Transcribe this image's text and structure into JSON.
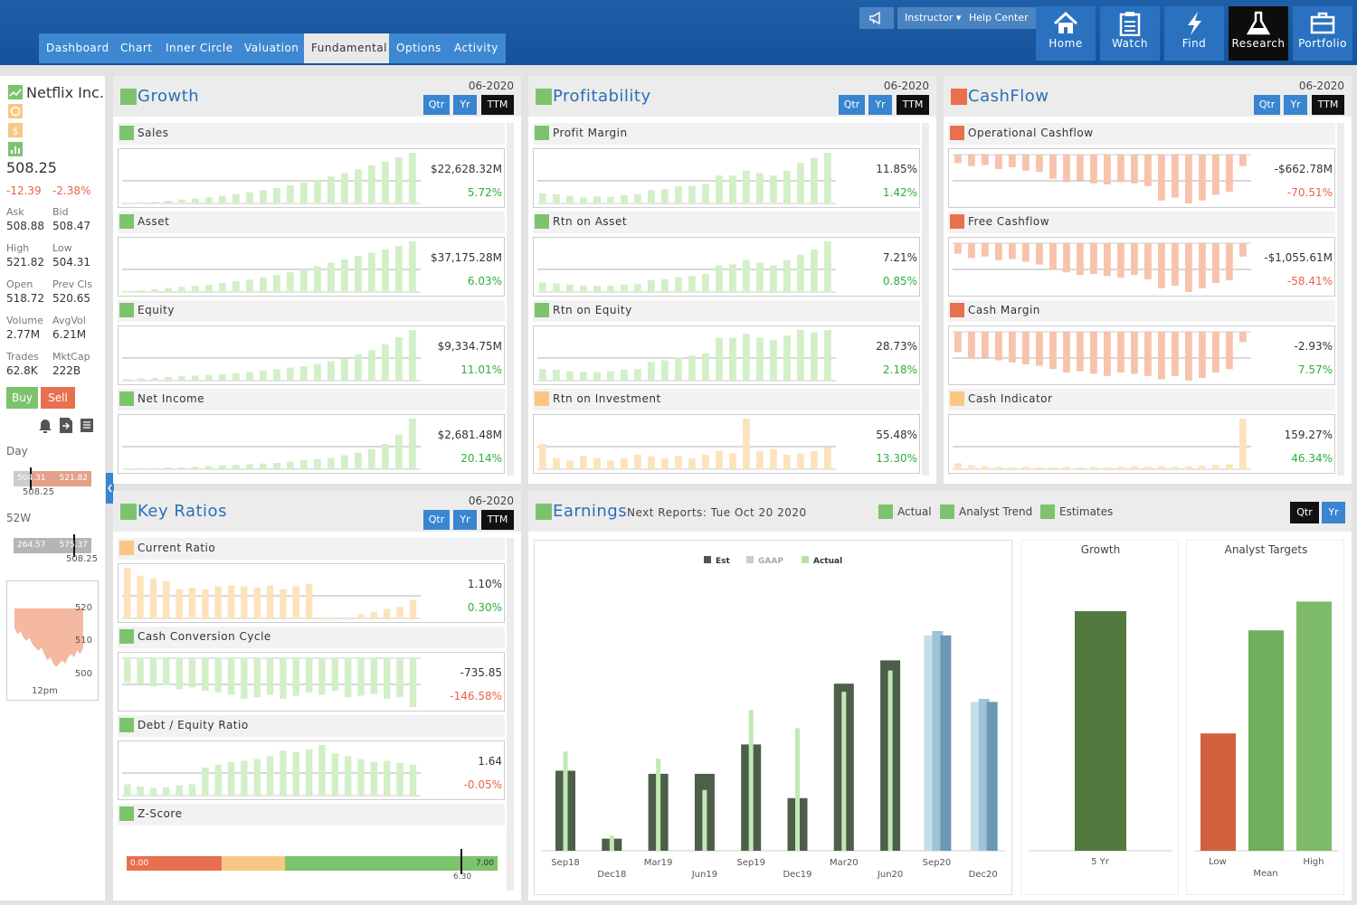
{
  "nav": {
    "tabs": [
      "Dashboard",
      "Chart",
      "Inner Circle",
      "Valuation",
      "Fundamental",
      "Options",
      "Activity"
    ],
    "top_links": {
      "instructor": "Instructor",
      "help": "Help Center"
    },
    "buttons": [
      {
        "label": "Home",
        "icon": "home-icon"
      },
      {
        "label": "Watch",
        "icon": "clipboard-icon"
      },
      {
        "label": "Find",
        "icon": "lightning-icon"
      },
      {
        "label": "Research",
        "icon": "flask-icon"
      },
      {
        "label": "Portfolio",
        "icon": "briefcase-icon"
      }
    ]
  },
  "quote": {
    "name": "Netflix Inc.",
    "price": "508.25",
    "change": "-12.39",
    "change_pct": "-2.38%",
    "fields": [
      {
        "l": "Ask",
        "v": "508.88"
      },
      {
        "l": "Bid",
        "v": "508.47"
      },
      {
        "l": "High",
        "v": "521.82"
      },
      {
        "l": "Low",
        "v": "504.31"
      },
      {
        "l": "Open",
        "v": "518.72"
      },
      {
        "l": "Prev Cls",
        "v": "520.65"
      },
      {
        "l": "Volume",
        "v": "2.77M"
      },
      {
        "l": "AvgVol",
        "v": "6.21M"
      },
      {
        "l": "Trades",
        "v": "62.8K"
      },
      {
        "l": "MktCap",
        "v": "222B"
      }
    ],
    "buy": "Buy",
    "sell": "Sell",
    "day_label": "Day",
    "day_low": "504.31",
    "day_high": "521.82",
    "day_cur": "508.25",
    "w52_label": "52W",
    "w52_low": "264.57",
    "w52_high": "575.37",
    "w52_cur": "508.25",
    "mini_ticks": [
      "520",
      "510",
      "500"
    ],
    "mini_time": "12pm",
    "mini_series": [
      516,
      514,
      515,
      513,
      512,
      513,
      511,
      510,
      509,
      510,
      508,
      506,
      507,
      505,
      504,
      505,
      506,
      505,
      507,
      508,
      507,
      509,
      508,
      510
    ]
  },
  "colors": {
    "green": "#7dc36e",
    "green_light": "#d3efc8",
    "orange": "#e8704f",
    "orange_light": "#f7c3ad",
    "yellow": "#f9c783",
    "yellow_light": "#fde3bd",
    "blue": "#3a85cf"
  },
  "panels": {
    "growth": {
      "title": "Growth",
      "date": "06-2020",
      "btns": [
        "Qtr",
        "Yr",
        "TTM"
      ],
      "metrics": [
        {
          "name": "Sales",
          "value": "$22,628.32M",
          "change": "5.72%",
          "sign": "pos",
          "color": "green",
          "series": [
            1,
            2,
            3,
            5,
            7,
            9,
            11,
            14,
            17,
            20,
            24,
            28,
            33,
            38,
            43,
            49,
            55,
            62,
            69,
            76,
            84,
            92
          ]
        },
        {
          "name": "Asset",
          "value": "$37,175.28M",
          "change": "6.03%",
          "sign": "pos",
          "color": "green",
          "series": [
            2,
            3,
            5,
            7,
            9,
            11,
            13,
            16,
            19,
            22,
            26,
            30,
            35,
            40,
            46,
            52,
            58,
            64,
            70,
            76,
            82,
            90
          ]
        },
        {
          "name": "Equity",
          "value": "$9,334.75M",
          "change": "11.01%",
          "sign": "pos",
          "color": "green",
          "series": [
            2,
            3,
            4,
            5,
            6,
            7,
            8,
            9,
            10,
            12,
            14,
            16,
            18,
            20,
            23,
            27,
            31,
            36,
            42,
            50,
            60,
            70
          ]
        },
        {
          "name": "Net Income",
          "value": "$2,681.48M",
          "change": "20.14%",
          "sign": "pos",
          "color": "green",
          "series": [
            1,
            2,
            2,
            3,
            3,
            4,
            5,
            6,
            7,
            8,
            9,
            10,
            12,
            14,
            16,
            18,
            22,
            26,
            32,
            40,
            55,
            80
          ]
        }
      ]
    },
    "profitability": {
      "title": "Profitability",
      "date": "06-2020",
      "btns": [
        "Qtr",
        "Yr",
        "TTM"
      ],
      "metrics": [
        {
          "name": "Profit Margin",
          "value": "11.85%",
          "change": "1.42%",
          "sign": "pos",
          "color": "green",
          "series": [
            20,
            18,
            15,
            12,
            14,
            13,
            16,
            18,
            26,
            28,
            34,
            35,
            38,
            55,
            55,
            65,
            60,
            55,
            65,
            80,
            90,
            100
          ]
        },
        {
          "name": "Rtn on Asset",
          "value": "7.21%",
          "change": "0.85%",
          "sign": "pos",
          "color": "green",
          "series": [
            18,
            16,
            14,
            12,
            12,
            12,
            14,
            15,
            22,
            24,
            28,
            30,
            34,
            50,
            52,
            60,
            55,
            50,
            60,
            70,
            80,
            95
          ]
        },
        {
          "name": "Rtn on Equity",
          "value": "28.73%",
          "change": "2.18%",
          "sign": "pos",
          "color": "green",
          "series": [
            15,
            14,
            12,
            11,
            11,
            12,
            14,
            15,
            24,
            26,
            30,
            32,
            35,
            55,
            55,
            60,
            55,
            52,
            58,
            65,
            62,
            65
          ]
        },
        {
          "name": "Rtn on Investment",
          "value": "55.48%",
          "change": "13.30%",
          "sign": "pos",
          "color": "yellow",
          "series": [
            35,
            15,
            12,
            18,
            15,
            12,
            15,
            20,
            18,
            15,
            18,
            15,
            20,
            25,
            22,
            70,
            25,
            28,
            20,
            22,
            25,
            30
          ]
        }
      ]
    },
    "cashflow": {
      "title": "CashFlow",
      "date": "06-2020",
      "btns": [
        "Qtr",
        "Yr",
        "TTM"
      ],
      "metrics": [
        {
          "name": "Operational Cashflow",
          "value": "-$662.78M",
          "change": "-70.51%",
          "sign": "neg",
          "color": "orange",
          "series": [
            -15,
            -20,
            -18,
            -25,
            -22,
            -28,
            -30,
            -42,
            -48,
            -45,
            -50,
            -52,
            -48,
            -50,
            -55,
            -80,
            -75,
            -85,
            -80,
            -70,
            -65,
            -20
          ]
        },
        {
          "name": "Free Cashflow",
          "value": "-$1,055.61M",
          "change": "-58.41%",
          "sign": "neg",
          "color": "orange",
          "series": [
            -20,
            -28,
            -25,
            -32,
            -30,
            -35,
            -40,
            -50,
            -55,
            -60,
            -58,
            -62,
            -65,
            -60,
            -68,
            -85,
            -80,
            -92,
            -85,
            -75,
            -70,
            -25
          ]
        },
        {
          "name": "Cash Margin",
          "value": "-2.93%",
          "change": "7.57%",
          "sign": "pos",
          "color": "orange",
          "series": [
            -30,
            -40,
            -38,
            -42,
            -45,
            -48,
            -50,
            -55,
            -60,
            -58,
            -62,
            -65,
            -60,
            -62,
            -65,
            -70,
            -65,
            -72,
            -68,
            -60,
            -55,
            -15
          ]
        },
        {
          "name": "Cash Indicator",
          "value": "159.27%",
          "change": "46.34%",
          "sign": "pos",
          "color": "yellow",
          "series": [
            12,
            8,
            6,
            5,
            4,
            5,
            4,
            4,
            5,
            4,
            5,
            4,
            5,
            6,
            5,
            6,
            5,
            6,
            7,
            8,
            10,
            100
          ]
        }
      ]
    },
    "key_ratios": {
      "title": "Key Ratios",
      "date": "06-2020",
      "btns": [
        "Qtr",
        "Yr",
        "TTM"
      ],
      "metrics": [
        {
          "name": "Current Ratio",
          "value": "1.10%",
          "change": "0.30%",
          "sign": "pos",
          "color": "yellow",
          "series": [
            95,
            80,
            75,
            70,
            55,
            58,
            55,
            60,
            62,
            60,
            58,
            62,
            55,
            60,
            65,
            0,
            0,
            0,
            8,
            12,
            18,
            22,
            35
          ]
        },
        {
          "name": "Cash Conversion Cycle",
          "value": "-735.85",
          "change": "-146.58%",
          "sign": "neg",
          "color": "green",
          "series": [
            -30,
            -32,
            -35,
            -33,
            -38,
            -36,
            -40,
            -42,
            -45,
            -50,
            -48,
            -45,
            -50,
            -46,
            -42,
            -45,
            -40,
            -48,
            -46,
            -44,
            -50,
            -48,
            -60
          ]
        },
        {
          "name": "Debt / Equity Ratio",
          "value": "1.64",
          "change": "-0.05%",
          "sign": "neg",
          "color": "green",
          "series": [
            20,
            16,
            14,
            15,
            18,
            20,
            50,
            55,
            60,
            62,
            65,
            70,
            80,
            78,
            82,
            90,
            75,
            70,
            65,
            60,
            62,
            58,
            55
          ]
        },
        {
          "name": "Z-Score",
          "zscore": {
            "min": "0.00",
            "max": "7.00",
            "value": "6.30"
          },
          "color": "green"
        }
      ]
    },
    "earnings": {
      "title": "Earnings",
      "next": "Next Reports: Tue Oct 20 2020",
      "legend": [
        "Actual",
        "Analyst Trend",
        "Estimates"
      ],
      "btns": [
        "Qtr",
        "Yr"
      ],
      "chart_legend": [
        "Est",
        "GAAP",
        "Actual"
      ],
      "growth_label": "Growth",
      "targets_label": "Analyst Targets"
    }
  },
  "chart_data": [
    {
      "type": "bar",
      "title": "",
      "categories": [
        "Sep18",
        "Dec18",
        "Mar19",
        "Jun19",
        "Sep19",
        "Dec19",
        "Mar20",
        "Jun20",
        "Sep20",
        "Dec20"
      ],
      "series": [
        {
          "name": "Est",
          "values": [
            0.79,
            0.12,
            0.76,
            0.76,
            1.05,
            0.52,
            1.65,
            1.88,
            2.17,
            1.5
          ]
        },
        {
          "name": "Actual",
          "values": [
            0.98,
            0.15,
            0.91,
            0.6,
            1.39,
            1.21,
            1.57,
            1.78,
            null,
            null
          ]
        }
      ],
      "ylim": [
        0,
        2.5
      ]
    },
    {
      "type": "bar",
      "title": "Growth",
      "categories": [
        "5 Yr"
      ],
      "values": [
        100
      ],
      "ylim": [
        0,
        120
      ]
    },
    {
      "type": "bar",
      "title": "Analyst Targets",
      "categories": [
        "Low",
        "Mean",
        "High"
      ],
      "values": [
        345,
        560,
        620
      ],
      "ylim": [
        100,
        700
      ]
    }
  ]
}
